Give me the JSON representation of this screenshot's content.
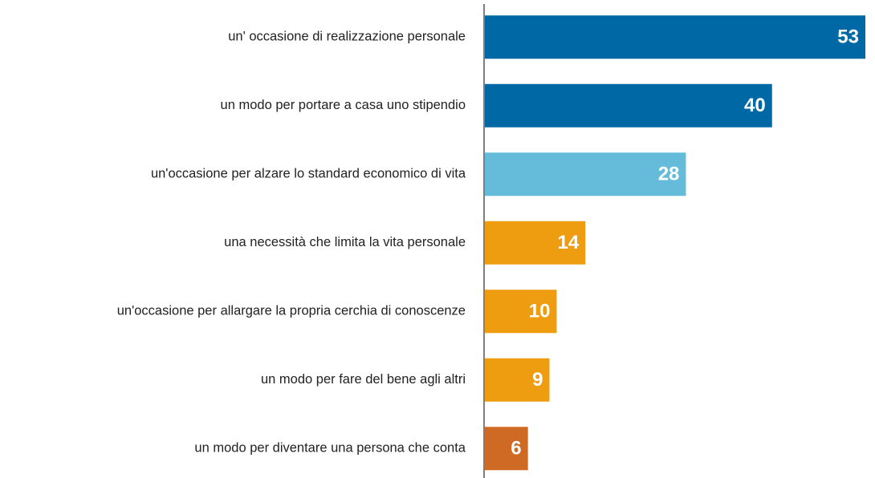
{
  "chart_data": {
    "type": "bar",
    "orientation": "horizontal",
    "categories": [
      "un' occasione di realizzazione personale",
      "un modo per portare a casa uno stipendio",
      "un'occasione per alzare lo standard economico di vita",
      "una necessità che limita la vita personale",
      "un'occasione per allargare la propria cerchia di conoscenze",
      "un modo per fare del bene agli altri",
      "un modo per diventare una persona che conta"
    ],
    "values": [
      53,
      40,
      28,
      14,
      10,
      9,
      6
    ],
    "colors": [
      "#0069a5",
      "#0069a5",
      "#64bcda",
      "#ee9c10",
      "#ee9c10",
      "#ee9c10",
      "#cf6a25"
    ]
  }
}
